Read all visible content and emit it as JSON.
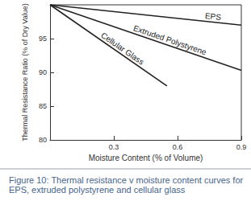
{
  "chart_data": {
    "type": "line",
    "title": "Figure 10: Thermal resistance v moisture content curves for EPS, extruded polystyrene and cellular glass",
    "x_label": "Moisture Content (% of Volume)",
    "y_label": "Thermal Resistance Ratio (% of Dry Value)",
    "xlim": [
      0,
      0.9
    ],
    "xticks": [
      0.3,
      0.6,
      0.9
    ],
    "ylim": [
      80,
      100
    ],
    "yticks": [
      80,
      85,
      90,
      95
    ],
    "grid": false,
    "series": [
      {
        "name": "EPS",
        "color": "#222222",
        "x": [
          0,
          0.9
        ],
        "values": [
          100,
          97
        ]
      },
      {
        "name": "Extruded Polystyrene",
        "color": "#222222",
        "x": [
          0,
          0.9
        ],
        "values": [
          100,
          90.3
        ]
      },
      {
        "name": "Cellular Glass",
        "color": "#222222",
        "x": [
          0,
          0.55
        ],
        "values": [
          100,
          88
        ]
      }
    ]
  }
}
